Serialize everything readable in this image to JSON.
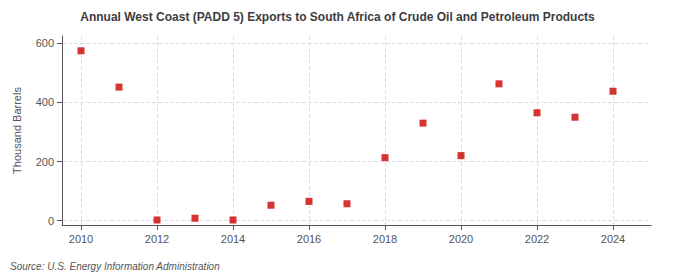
{
  "chart_data": {
    "type": "scatter",
    "title": "Annual West Coast (PADD 5) Exports to South Africa of Crude Oil and Petroleum Products",
    "ylabel": "Thousand Barrels",
    "annotations": [
      "Source: U.S. Energy Information Administration"
    ],
    "x": [
      2010,
      2011,
      2012,
      2013,
      2014,
      2015,
      2016,
      2017,
      2018,
      2019,
      2020,
      2021,
      2022,
      2023,
      2024
    ],
    "values": [
      575,
      452,
      2,
      8,
      2,
      52,
      65,
      57,
      213,
      330,
      220,
      463,
      365,
      350,
      438
    ],
    "color": "#cc0000",
    "marker": "square",
    "xlim": [
      2009.5,
      2025.0
    ],
    "ylim": [
      -15,
      625
    ],
    "xticks": [
      2010,
      2012,
      2014,
      2016,
      2018,
      2020,
      2022,
      2024
    ],
    "yticks": [
      0,
      200,
      400,
      600
    ],
    "grid": true
  }
}
